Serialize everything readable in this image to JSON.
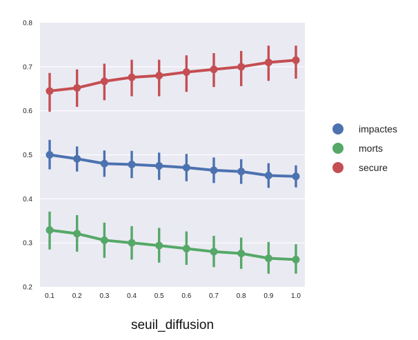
{
  "chart_data": {
    "type": "line",
    "title": "",
    "xlabel": "seuil_diffusion",
    "ylabel": "",
    "x": [
      "0.1",
      "0.2",
      "0.3",
      "0.4",
      "0.5",
      "0.6",
      "0.7",
      "0.8",
      "0.9",
      "1.0"
    ],
    "ylim": [
      0.2,
      0.8
    ],
    "yticks": [
      "0.2",
      "0.3",
      "0.4",
      "0.5",
      "0.6",
      "0.7",
      "0.8"
    ],
    "grid": true,
    "legend": "right",
    "series": [
      {
        "name": "impactes",
        "color": "#4c72b0",
        "values": [
          0.5,
          0.491,
          0.48,
          0.478,
          0.475,
          0.471,
          0.465,
          0.462,
          0.453,
          0.451
        ],
        "err_low": [
          0.467,
          0.462,
          0.45,
          0.447,
          0.443,
          0.44,
          0.436,
          0.434,
          0.425,
          0.426
        ],
        "err_high": [
          0.534,
          0.519,
          0.51,
          0.509,
          0.505,
          0.502,
          0.494,
          0.49,
          0.481,
          0.476
        ]
      },
      {
        "name": "morts",
        "color": "#55a868",
        "values": [
          0.329,
          0.321,
          0.306,
          0.3,
          0.294,
          0.287,
          0.28,
          0.276,
          0.265,
          0.262
        ],
        "err_low": [
          0.285,
          0.28,
          0.266,
          0.262,
          0.255,
          0.25,
          0.245,
          0.241,
          0.23,
          0.23
        ],
        "err_high": [
          0.371,
          0.363,
          0.346,
          0.338,
          0.334,
          0.326,
          0.316,
          0.312,
          0.302,
          0.297
        ]
      },
      {
        "name": "secure",
        "color": "#c44e52",
        "values": [
          0.645,
          0.652,
          0.667,
          0.676,
          0.68,
          0.688,
          0.694,
          0.7,
          0.71,
          0.715
        ],
        "err_low": [
          0.598,
          0.609,
          0.624,
          0.633,
          0.633,
          0.643,
          0.654,
          0.656,
          0.668,
          0.673
        ],
        "err_high": [
          0.686,
          0.694,
          0.707,
          0.716,
          0.716,
          0.726,
          0.731,
          0.736,
          0.748,
          0.748
        ]
      }
    ]
  }
}
